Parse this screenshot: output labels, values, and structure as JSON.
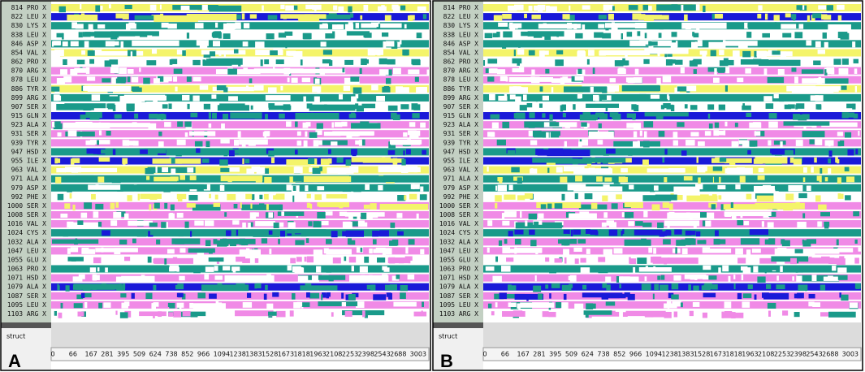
{
  "residues": [
    "814 PRO X",
    "822 LEU X",
    "830 LYS X",
    "838 LEU X",
    "846 ASP X",
    "854 VAL X",
    "862 PRO X",
    "870 ARG X",
    "878 LEU X",
    "886 TYR X",
    "899 ARG X",
    "907 SER X",
    "915 GLN X",
    "923 ALA X",
    "931 SER X",
    "939 TYR X",
    "947 HSD X",
    "955 ILE X",
    "963 VAL X",
    "971 ALA X",
    "979 ASP X",
    "992 PHE X",
    "1000 SER X",
    "1008 SER X",
    "1016 VAL X",
    "1024 CYS X",
    "1032 ALA X",
    "1047 LEU X",
    "1055 GLU X",
    "1063 PRO X",
    "1071 HSD X",
    "1079 ALA X",
    "1087 SER X",
    "1095 LEU X",
    "1103 ARG X"
  ],
  "struct_label": "struct",
  "frame_ticks": [
    0,
    66,
    167,
    281,
    395,
    509,
    624,
    738,
    852,
    966,
    1094,
    1238,
    1383,
    1528,
    1673,
    1818,
    1963,
    2108,
    2253,
    2398,
    2543,
    2688,
    3003
  ],
  "panels": [
    {
      "label": "A"
    },
    {
      "label": "B"
    }
  ]
}
